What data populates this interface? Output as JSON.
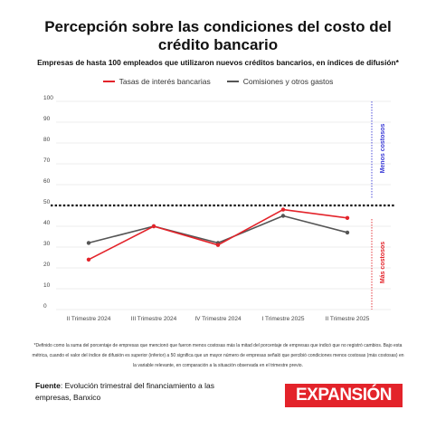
{
  "title": "Percepción sobre las condiciones del costo del crédito bancario",
  "subtitle": "Empresas de hasta 100 empleados que utilizaron nuevos créditos bancarios, en índices de difusión*",
  "chart_data": {
    "type": "line",
    "categories": [
      "II Trimestre 2024",
      "III Trimestre 2024",
      "IV Trimestre 2024",
      "I Trimestre 2025",
      "II Trimestre 2025"
    ],
    "series": [
      {
        "name": "Tasas de interés bancarias",
        "color": "#e3232a",
        "values": [
          24,
          40,
          31,
          48,
          44
        ]
      },
      {
        "name": "Comisiones y otros gastos",
        "color": "#555555",
        "values": [
          32,
          40,
          32,
          45,
          37
        ]
      }
    ],
    "ylim": [
      0,
      100
    ],
    "yticks": [
      0,
      10,
      20,
      30,
      40,
      50,
      60,
      70,
      80,
      90,
      100
    ],
    "reference_line": 50,
    "annotations": {
      "upper": "Menos costosos",
      "lower": "Más costosos"
    },
    "annotation_colors": {
      "upper": "#3b3bd6",
      "lower": "#e3232a"
    },
    "grid": true,
    "legend_position": "top"
  },
  "footnote": "*Definido como la suma del porcentaje de empresas que mencionó que fueron menos costosas más la mitad del porcentaje de empresas que indicó que no registró cambios. Bajo esta métrica, cuando el valor del índice de difusión es superior (inferior) a 50 significa que un mayor número de empresas señaló que percibió condiciones menos costosas (más costosas) en la variable relevante, en comparación a la situación observada en el trimestre previo.",
  "source": {
    "label": "Fuente",
    "text": ": Evolución trimestral del financiamiento a las empresas, Banxico"
  },
  "logo": "EXPANSIÓN"
}
